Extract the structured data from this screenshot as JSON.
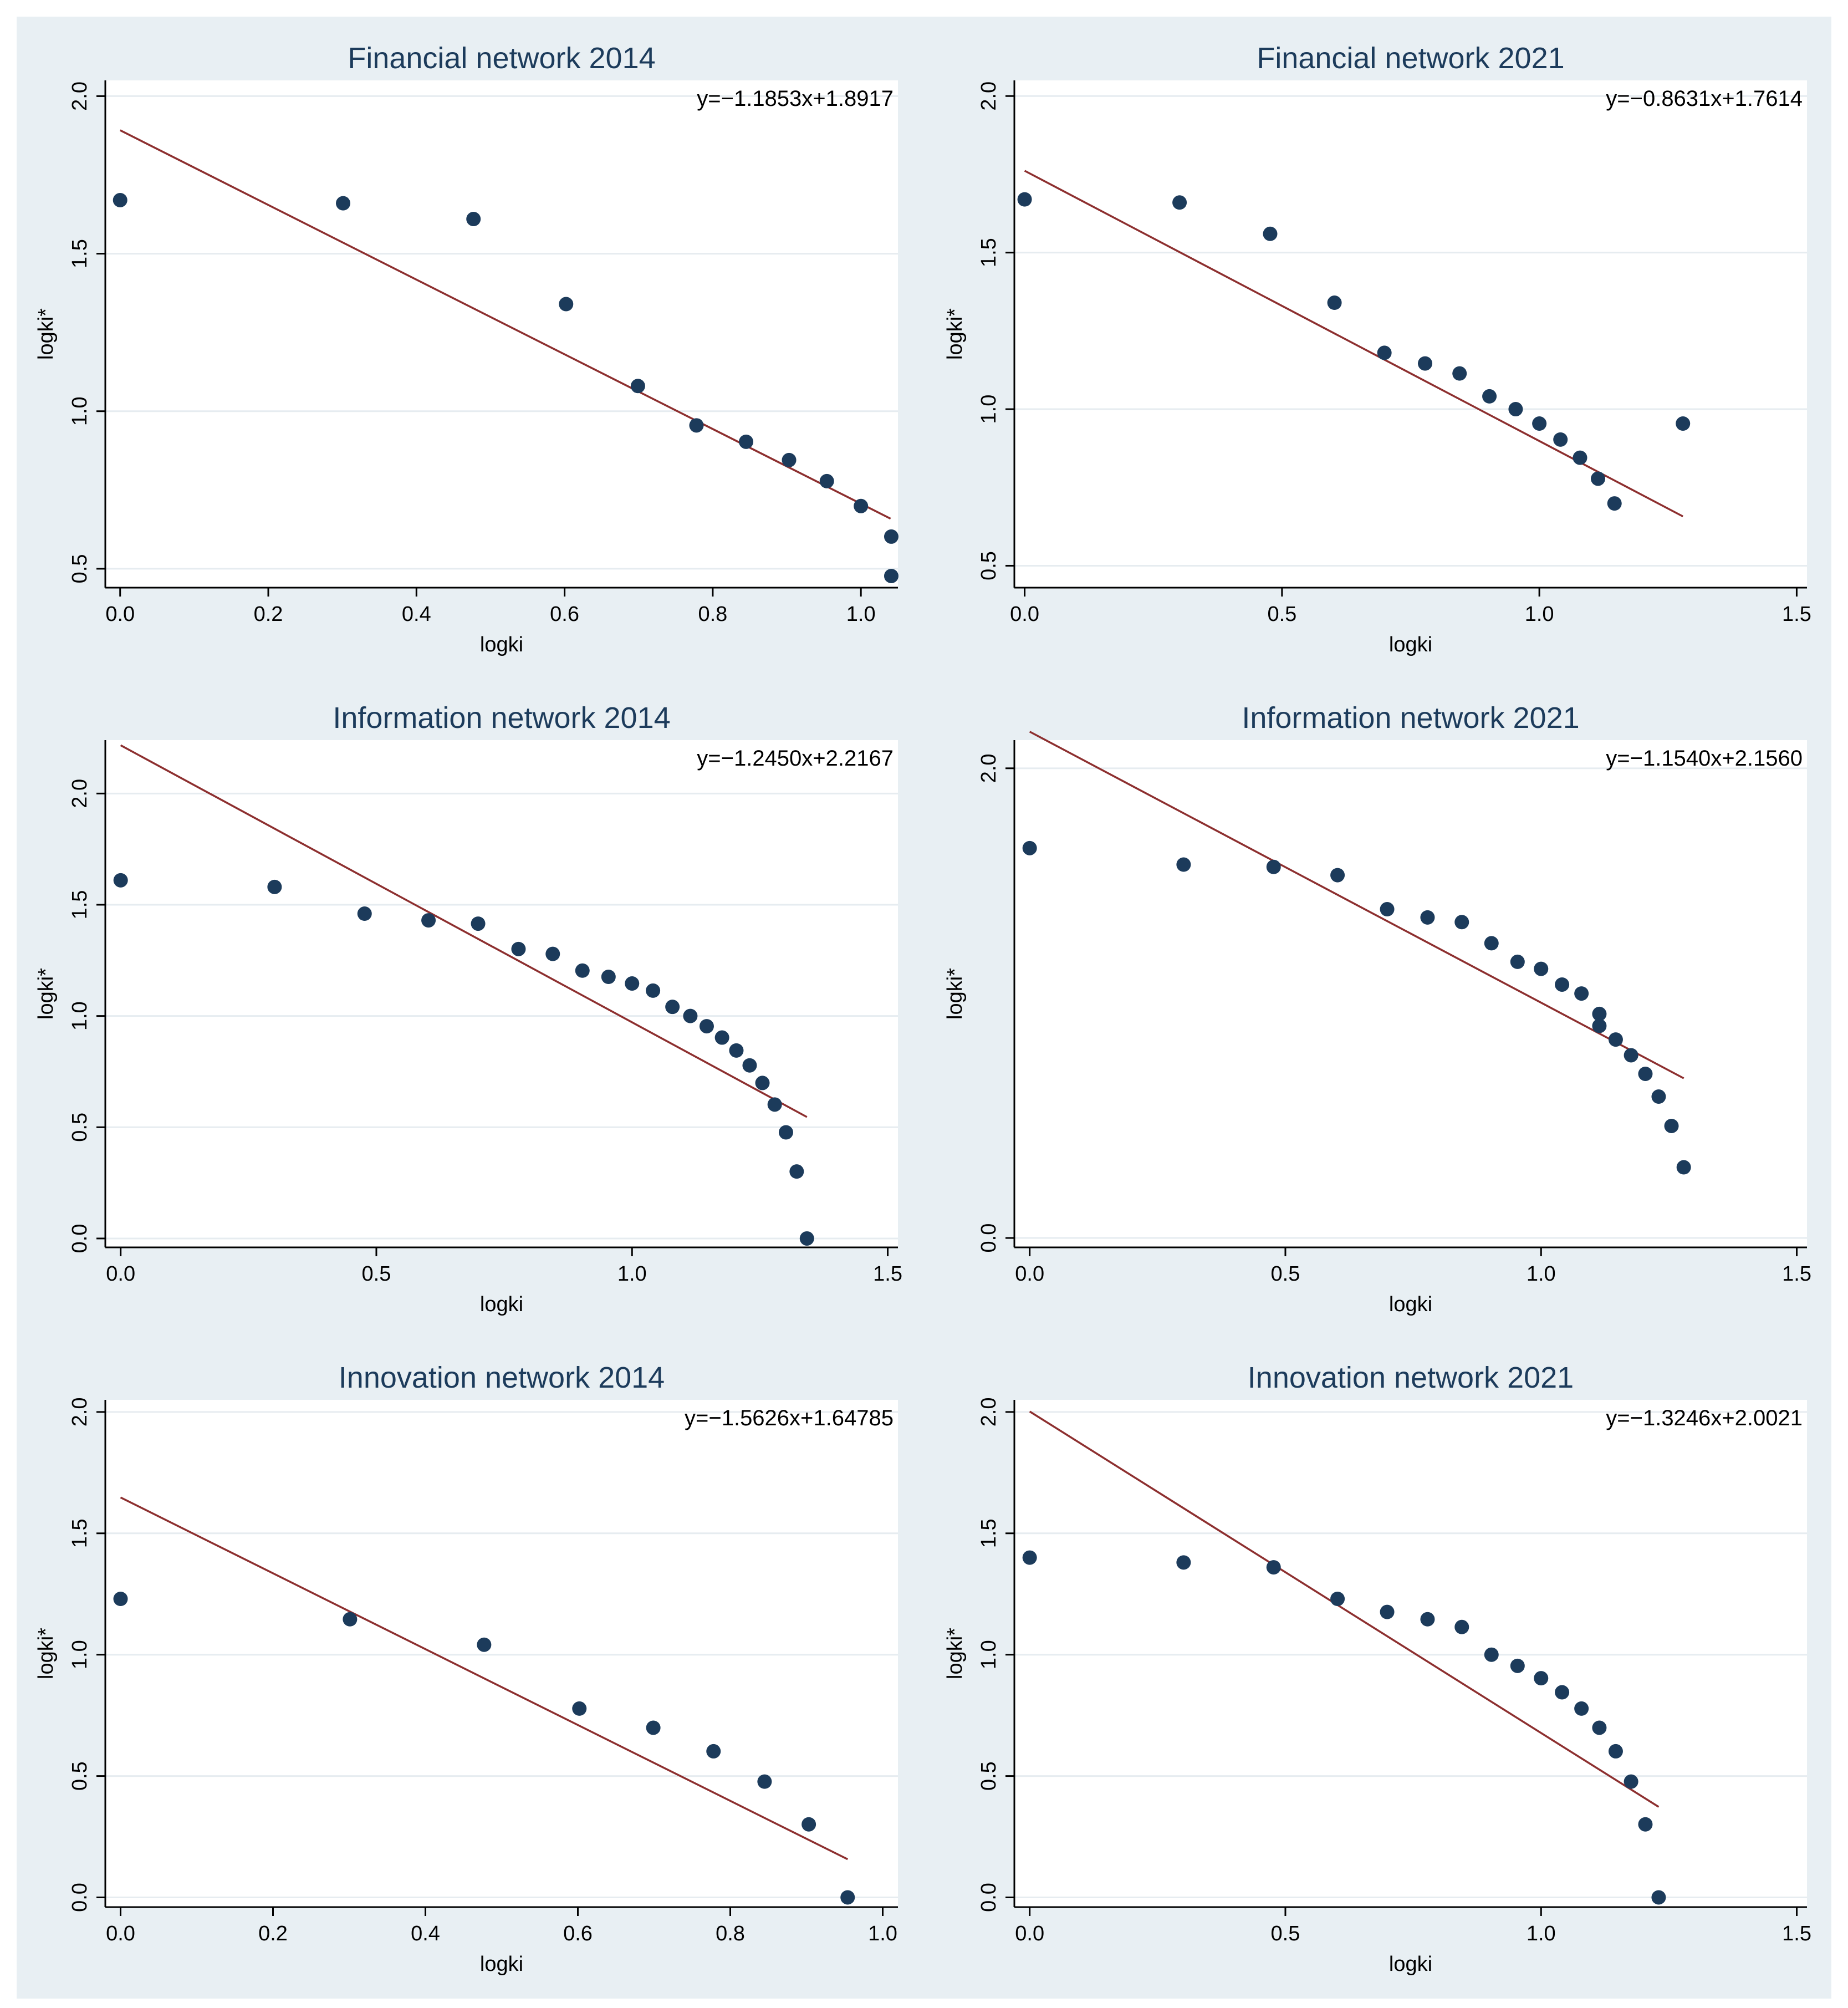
{
  "chart_data": [
    {
      "type": "scatter",
      "title": "Financial network 2014",
      "xlabel": "logki",
      "ylabel": "logki*",
      "equation": "y=−1.1853x+1.8917",
      "fit": {
        "slope": -1.1853,
        "intercept": 1.8917,
        "x_range": [
          0,
          1.04
        ]
      },
      "xlim": [
        -0.02,
        1.05
      ],
      "ylim": [
        0.44,
        2.05
      ],
      "xticks": [
        0,
        0.2,
        0.4,
        0.6,
        0.8,
        1.0
      ],
      "xtick_labels": [
        "0.0",
        "0.2",
        "0.4",
        "0.6",
        "0.8",
        "1.0"
      ],
      "yticks": [
        0.5,
        1.0,
        1.5,
        2.0
      ],
      "ytick_labels": [
        "0.5",
        "1.0",
        "1.5",
        "2.0"
      ],
      "x": [
        0.0,
        0.301,
        0.477,
        0.602,
        0.699,
        0.778,
        0.845,
        0.903,
        0.954,
        1.0,
        1.041,
        1.041
      ],
      "y": [
        1.67,
        1.66,
        1.61,
        1.34,
        1.08,
        0.955,
        0.903,
        0.845,
        0.778,
        0.699,
        0.602,
        0.477
      ]
    },
    {
      "type": "scatter",
      "title": "Financial network 2021",
      "xlabel": "logki",
      "ylabel": "logki*",
      "equation": "y=−0.8631x+1.7614",
      "fit": {
        "slope": -0.8631,
        "intercept": 1.7614,
        "x_range": [
          0,
          1.279
        ]
      },
      "xlim": [
        -0.02,
        1.52
      ],
      "ylim": [
        0.43,
        2.05
      ],
      "xticks": [
        0,
        0.5,
        1.0,
        1.5
      ],
      "xtick_labels": [
        "0.0",
        "0.5",
        "1.0",
        "1.5"
      ],
      "yticks": [
        0.5,
        1.0,
        1.5,
        2.0
      ],
      "ytick_labels": [
        "0.5",
        "1.0",
        "1.5",
        "2.0"
      ],
      "x": [
        0.0,
        0.301,
        0.477,
        0.602,
        0.699,
        0.778,
        0.845,
        0.903,
        0.954,
        1.0,
        1.041,
        1.079,
        1.114,
        1.146,
        1.279
      ],
      "y": [
        1.67,
        1.66,
        1.56,
        1.34,
        1.18,
        1.146,
        1.114,
        1.041,
        1.0,
        0.954,
        0.903,
        0.845,
        0.778,
        0.699,
        0.954
      ]
    },
    {
      "type": "scatter",
      "title": "Information network 2014",
      "xlabel": "logki",
      "ylabel": "logki*",
      "equation": "y=−1.2450x+2.2167",
      "fit": {
        "slope": -1.245,
        "intercept": 2.2167,
        "x_range": [
          0,
          1.342
        ]
      },
      "xlim": [
        -0.03,
        1.52
      ],
      "ylim": [
        -0.04,
        2.24
      ],
      "xticks": [
        0,
        0.5,
        1.0,
        1.5
      ],
      "xtick_labels": [
        "0.0",
        "0.5",
        "1.0",
        "1.5"
      ],
      "yticks": [
        0,
        0.5,
        1.0,
        1.5,
        2.0
      ],
      "ytick_labels": [
        "0.0",
        "0.5",
        "1.0",
        "1.5",
        "2.0"
      ],
      "x": [
        0.0,
        0.301,
        0.477,
        0.602,
        0.699,
        0.778,
        0.845,
        0.903,
        0.954,
        1.0,
        1.041,
        1.079,
        1.114,
        1.146,
        1.176,
        1.204,
        1.23,
        1.255,
        1.279,
        1.301,
        1.322,
        1.342
      ],
      "y": [
        1.61,
        1.58,
        1.46,
        1.43,
        1.415,
        1.301,
        1.279,
        1.204,
        1.176,
        1.146,
        1.114,
        1.041,
        1.0,
        0.954,
        0.903,
        0.845,
        0.778,
        0.699,
        0.602,
        0.477,
        0.301,
        0.0
      ]
    },
    {
      "type": "scatter",
      "title": "Information network 2021",
      "xlabel": "logki",
      "ylabel": "logki*",
      "equation": "y=−1.1540x+2.1560",
      "fit": {
        "slope": -1.154,
        "intercept": 2.156,
        "x_range": [
          0,
          1.279
        ]
      },
      "xlim": [
        -0.03,
        1.52
      ],
      "ylim": [
        -0.04,
        2.12
      ],
      "xticks": [
        0,
        0.5,
        1.0,
        1.5
      ],
      "xtick_labels": [
        "0.0",
        "0.5",
        "1.0",
        "1.5"
      ],
      "yticks": [
        0,
        2.0
      ],
      "ytick_labels": [
        "0.0",
        "2.0"
      ],
      "x": [
        0.0,
        0.301,
        0.477,
        0.602,
        0.699,
        0.778,
        0.845,
        0.903,
        0.954,
        1.0,
        1.041,
        1.079,
        1.114,
        1.114,
        1.146,
        1.176,
        1.204,
        1.23,
        1.255,
        1.279
      ],
      "y": [
        1.66,
        1.59,
        1.58,
        1.545,
        1.4,
        1.365,
        1.345,
        1.255,
        1.176,
        1.146,
        1.079,
        1.041,
        0.954,
        0.903,
        0.845,
        0.778,
        0.699,
        0.602,
        0.477,
        0.301
      ]
    },
    {
      "type": "scatter",
      "title": "Innovation network 2014",
      "xlabel": "logki",
      "ylabel": "logki*",
      "equation": "y=−1.5626x+1.64785",
      "fit": {
        "slope": -1.5626,
        "intercept": 1.64785,
        "x_range": [
          0,
          0.954
        ]
      },
      "xlim": [
        -0.02,
        1.02
      ],
      "ylim": [
        -0.04,
        2.05
      ],
      "xticks": [
        0,
        0.2,
        0.4,
        0.6,
        0.8,
        1.0
      ],
      "xtick_labels": [
        "0.0",
        "0.2",
        "0.4",
        "0.6",
        "0.8",
        "1.0"
      ],
      "yticks": [
        0,
        0.5,
        1.0,
        1.5,
        2.0
      ],
      "ytick_labels": [
        "0.0",
        "0.5",
        "1.0",
        "1.5",
        "2.0"
      ],
      "x": [
        0.0,
        0.301,
        0.477,
        0.602,
        0.699,
        0.778,
        0.845,
        0.903,
        0.954
      ],
      "y": [
        1.23,
        1.146,
        1.041,
        0.778,
        0.699,
        0.602,
        0.477,
        0.301,
        0.0
      ]
    },
    {
      "type": "scatter",
      "title": "Innovation network 2021",
      "xlabel": "logki",
      "ylabel": "logki*",
      "equation": "y=−1.3246x+2.0021",
      "fit": {
        "slope": -1.3246,
        "intercept": 2.0021,
        "x_range": [
          0,
          1.23
        ]
      },
      "xlim": [
        -0.03,
        1.52
      ],
      "ylim": [
        -0.04,
        2.05
      ],
      "xticks": [
        0,
        0.5,
        1.0,
        1.5
      ],
      "xtick_labels": [
        "0.0",
        "0.5",
        "1.0",
        "1.5"
      ],
      "yticks": [
        0,
        0.5,
        1.0,
        1.5,
        2.0
      ],
      "ytick_labels": [
        "0.0",
        "0.5",
        "1.0",
        "1.5",
        "2.0"
      ],
      "x": [
        0.0,
        0.301,
        0.477,
        0.602,
        0.699,
        0.778,
        0.845,
        0.903,
        0.954,
        1.0,
        1.041,
        1.079,
        1.114,
        1.146,
        1.176,
        1.204,
        1.23
      ],
      "y": [
        1.4,
        1.38,
        1.36,
        1.23,
        1.176,
        1.146,
        1.114,
        1.0,
        0.954,
        0.903,
        0.845,
        0.778,
        0.699,
        0.602,
        0.477,
        0.301,
        0.0
      ]
    }
  ],
  "colors": {
    "outer_background": "#e8eff3",
    "plot_background": "#ffffff",
    "gridline": "#e6ecf0",
    "axis": "#000000",
    "marker": "#1c3b5b",
    "fit_line": "#8d2f2f",
    "text": "#000000",
    "title": "#1c3b5b"
  }
}
